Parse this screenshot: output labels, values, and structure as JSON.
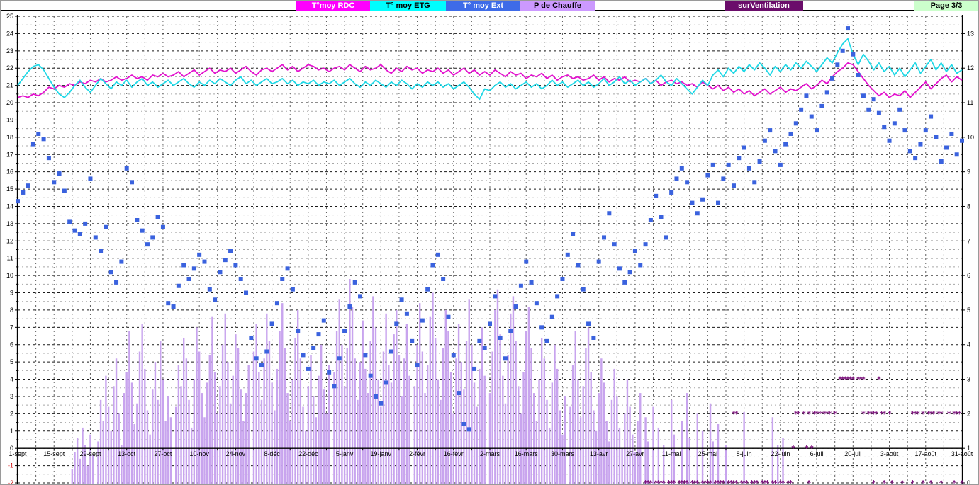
{
  "page": {
    "label": "Page  3/3",
    "bg": "#CCFFCC",
    "fg": "#000000"
  },
  "legend": [
    {
      "label": "T°moy RDC",
      "bg": "#FF00FF",
      "fg": "#FFFFFF"
    },
    {
      "label": "T° moy ETG",
      "bg": "#00FFFF",
      "fg": "#000000"
    },
    {
      "label": "T° moy Ext",
      "bg": "#3E6BE8",
      "fg": "#FFFFFF"
    },
    {
      "label": "P  de Chauffe",
      "bg": "#CC99FF",
      "fg": "#000000"
    },
    {
      "label": "surVentilation",
      "bg": "#6B0D6B",
      "fg": "#FFFFFF"
    }
  ],
  "chart_data": {
    "type": "composite",
    "x_axis": {
      "days": 364,
      "label_interval_days": 14,
      "grid_interval_days": 7,
      "tick_labels": [
        "1-sept",
        "15-sept",
        "29-sept",
        "13-oct",
        "27-oct",
        "10-nov",
        "24-nov",
        "8-déc",
        "22-déc",
        "5-janv",
        "19-janv",
        "2-févr",
        "16-févr",
        "2-mars",
        "16-mars",
        "30-mars",
        "13-avr",
        "27-avr",
        "11-mai",
        "25-mai",
        "8-juin",
        "22-juin",
        "6-juil",
        "20-juil",
        "3-août",
        "17-août",
        "31-août"
      ]
    },
    "axes": {
      "left": {
        "min": -2,
        "max": 25,
        "major": 1,
        "label_color": "#000000",
        "negative_label_color": "#CC0000"
      },
      "right": {
        "min": 0,
        "max": 13.5,
        "major": 1,
        "label_color": "#000000"
      }
    },
    "grid": {
      "major_color": "#1a1a1a",
      "minor_color": "#A8A8A8",
      "vertical_color": "#606060"
    },
    "series": [
      {
        "name": "T°moy RDC",
        "type": "line",
        "axis": "left",
        "color": "#E312CE",
        "step_days": 2,
        "values": [
          20.3,
          20.4,
          20.3,
          20.5,
          20.4,
          20.6,
          20.9,
          20.8,
          21.0,
          20.9,
          21.1,
          21.0,
          21.2,
          21.1,
          21.3,
          21.2,
          21.4,
          21.2,
          21.3,
          21.5,
          21.3,
          21.4,
          21.6,
          21.4,
          21.5,
          21.3,
          21.6,
          21.5,
          21.7,
          21.5,
          21.6,
          21.8,
          21.5,
          21.7,
          21.9,
          21.6,
          21.8,
          22.0,
          21.7,
          21.9,
          21.8,
          22.0,
          21.7,
          21.9,
          22.1,
          21.8,
          21.6,
          21.9,
          22.0,
          21.8,
          22.0,
          22.2,
          21.9,
          22.1,
          21.8,
          22.0,
          22.2,
          22.1,
          21.9,
          22.0,
          21.8,
          22.0,
          22.1,
          21.9,
          22.2,
          22.0,
          21.8,
          22.1,
          21.9,
          22.0,
          22.2,
          21.9,
          21.7,
          22.0,
          21.8,
          22.1,
          21.9,
          22.0,
          21.7,
          21.9,
          21.8,
          22.0,
          21.7,
          21.9,
          21.6,
          21.8,
          22.0,
          21.7,
          21.9,
          21.6,
          21.8,
          21.6,
          21.9,
          21.7,
          21.5,
          21.8,
          21.6,
          21.7,
          21.4,
          21.6,
          21.5,
          21.7,
          21.4,
          21.6,
          21.3,
          21.5,
          21.6,
          21.4,
          21.5,
          21.3,
          21.4,
          21.6,
          21.3,
          21.5,
          21.2,
          21.4,
          21.3,
          21.5,
          21.2,
          21.3,
          21.2,
          21.4,
          21.1,
          21.3,
          21.0,
          21.2,
          21.3,
          21.1,
          21.2,
          21.0,
          21.1,
          20.9,
          21.2,
          21.0,
          20.8,
          21.0,
          20.7,
          20.9,
          20.6,
          20.8,
          20.5,
          20.7,
          20.4,
          20.6,
          20.8,
          20.5,
          20.7,
          20.9,
          20.6,
          20.8,
          20.7,
          20.9,
          21.1,
          20.8,
          21.0,
          21.3,
          21.1,
          21.5,
          21.8,
          22.0,
          22.3,
          22.2,
          21.8,
          21.4,
          21.0,
          20.7,
          20.4,
          20.6,
          20.3,
          20.5,
          20.4,
          20.7,
          20.3,
          20.6,
          20.9,
          21.2,
          20.8,
          21.1,
          21.4,
          21.6,
          21.2,
          21.5,
          21.3
        ]
      },
      {
        "name": "T° moy ETG",
        "type": "line",
        "axis": "left",
        "color": "#1FD8E6",
        "step_days": 2,
        "values": [
          21.0,
          21.4,
          21.8,
          22.1,
          22.2,
          21.9,
          21.4,
          20.9,
          20.5,
          20.3,
          20.6,
          21.0,
          21.3,
          20.9,
          20.6,
          21.0,
          21.4,
          21.1,
          20.8,
          21.2,
          21.0,
          21.3,
          20.9,
          21.2,
          21.4,
          21.0,
          21.2,
          20.9,
          21.1,
          21.3,
          21.0,
          21.2,
          21.4,
          21.1,
          20.9,
          21.2,
          21.0,
          21.3,
          21.1,
          21.4,
          21.2,
          21.0,
          21.3,
          21.5,
          21.1,
          21.3,
          21.0,
          21.2,
          21.4,
          21.1,
          21.2,
          21.4,
          21.1,
          21.3,
          21.0,
          21.2,
          21.1,
          21.3,
          21.0,
          21.2,
          21.1,
          21.3,
          21.0,
          21.2,
          21.4,
          21.1,
          20.9,
          21.2,
          21.0,
          21.3,
          21.1,
          20.9,
          21.2,
          21.0,
          21.3,
          21.1,
          20.8,
          21.1,
          20.9,
          21.2,
          21.0,
          21.2,
          20.9,
          21.1,
          20.8,
          21.0,
          21.2,
          20.9,
          20.5,
          20.2,
          20.8,
          20.7,
          21.0,
          21.2,
          20.9,
          21.1,
          20.8,
          21.0,
          21.2,
          20.9,
          21.1,
          20.8,
          21.0,
          21.3,
          21.0,
          21.2,
          20.9,
          21.1,
          21.3,
          21.0,
          21.2,
          20.9,
          21.1,
          21.4,
          21.0,
          21.2,
          21.5,
          21.1,
          21.3,
          21.0,
          21.2,
          21.4,
          21.1,
          21.3,
          21.6,
          21.2,
          21.0,
          21.4,
          21.1,
          20.8,
          20.5,
          20.9,
          21.3,
          21.0,
          21.6,
          21.9,
          21.5,
          22.0,
          21.7,
          22.1,
          21.8,
          22.2,
          21.9,
          22.3,
          22.0,
          21.6,
          22.1,
          21.8,
          22.2,
          21.9,
          22.3,
          22.0,
          22.4,
          22.1,
          21.8,
          22.2,
          22.6,
          22.3,
          22.9,
          23.4,
          23.7,
          22.8,
          22.2,
          22.8,
          22.4,
          21.9,
          22.3,
          21.8,
          22.1,
          21.6,
          22.0,
          21.5,
          21.9,
          22.3,
          21.7,
          22.1,
          22.5,
          21.9,
          22.3,
          21.8,
          22.2,
          21.7,
          21.9
        ]
      },
      {
        "name": "T° moy Ext",
        "type": "scatter",
        "axis": "left",
        "color": "#3A62DE",
        "step_days": 2,
        "values": [
          14.3,
          14.8,
          15.2,
          17.6,
          18.2,
          17.9,
          16.8,
          15.4,
          15.9,
          14.9,
          13.1,
          12.6,
          12.4,
          13.0,
          15.6,
          12.2,
          11.4,
          12.8,
          10.2,
          9.6,
          10.8,
          16.2,
          15.4,
          13.2,
          12.6,
          11.8,
          12.2,
          13.4,
          12.8,
          8.4,
          8.2,
          9.4,
          10.6,
          9.8,
          10.4,
          11.2,
          10.8,
          9.2,
          8.6,
          10.2,
          10.9,
          11.4,
          10.6,
          9.8,
          9.0,
          6.4,
          5.2,
          4.8,
          5.6,
          7.2,
          8.4,
          9.8,
          10.4,
          9.2,
          6.8,
          5.4,
          4.6,
          5.8,
          6.6,
          7.4,
          4.4,
          3.6,
          5.2,
          6.8,
          8.2,
          9.6,
          8.8,
          5.4,
          4.2,
          3.0,
          2.6,
          3.8,
          5.6,
          7.2,
          8.6,
          7.8,
          6.2,
          4.8,
          7.4,
          9.2,
          10.6,
          11.2,
          9.8,
          7.6,
          5.4,
          3.2,
          1.4,
          1.1,
          4.6,
          6.2,
          5.8,
          7.2,
          8.8,
          6.4,
          5.2,
          6.8,
          8.2,
          9.4,
          10.8,
          9.6,
          8.4,
          7.0,
          6.2,
          7.6,
          8.8,
          9.8,
          11.2,
          12.4,
          10.6,
          9.2,
          7.2,
          6.4,
          10.8,
          12.2,
          13.6,
          11.8,
          10.4,
          9.6,
          10.2,
          11.4,
          10.6,
          11.8,
          13.2,
          14.6,
          13.4,
          12.2,
          14.8,
          15.6,
          16.2,
          15.4,
          14.2,
          13.6,
          14.4,
          15.8,
          16.4,
          14.2,
          15.6,
          16.4,
          15.2,
          16.8,
          17.4,
          16.2,
          15.4,
          16.6,
          17.8,
          18.4,
          17.2,
          16.4,
          17.6,
          18.2,
          18.8,
          19.6,
          20.4,
          19.2,
          18.4,
          19.8,
          20.6,
          21.4,
          22.2,
          23.0,
          24.3,
          22.8,
          21.6,
          20.4,
          19.6,
          20.2,
          19.4,
          18.6,
          17.8,
          18.8,
          19.6,
          18.4,
          17.2,
          16.8,
          17.6,
          18.4,
          19.2,
          18.0,
          16.6,
          17.4,
          18.2,
          17.0,
          17.8
        ]
      },
      {
        "name": "P  de Chauffe",
        "type": "bar",
        "axis": "right",
        "color": "#C8A4EE",
        "runs": [
          {
            "start": 21,
            "heights": [
              0.4,
              0.9,
              1.3,
              0.7,
              1.6,
              1.1,
              0.5,
              1.4,
              0.8
            ]
          },
          {
            "start": 31,
            "heights": [
              1.2,
              2.4,
              1.8,
              3.1,
              2.2,
              1.5,
              2.8,
              3.6,
              2.0,
              1.1,
              2.6,
              3.2,
              4.4,
              2.9,
              1.7,
              2.3,
              3.8,
              4.6,
              3.3,
              2.1,
              1.4,
              2.7,
              3.5,
              2.4,
              4.1,
              3.0,
              1.8,
              2.5,
              1.9
            ]
          },
          {
            "start": 61,
            "heights": [
              2.2,
              3.4,
              2.8,
              4.2,
              3.6,
              2.4,
              1.6,
              3.0,
              4.5,
              3.8,
              2.6,
              1.9,
              2.9,
              3.7,
              4.8,
              3.2,
              2.0,
              2.8,
              4.0,
              4.9,
              3.5,
              2.3,
              3.1,
              4.3,
              3.9,
              2.7,
              1.8,
              2.6,
              3.4
            ]
          },
          {
            "start": 91,
            "heights": [
              3.8,
              4.6,
              3.2,
              2.4,
              3.6,
              4.9,
              4.1,
              2.9,
              2.1,
              3.3,
              4.4,
              5.2,
              3.9,
              2.6,
              1.8,
              3.0,
              4.2,
              5.0,
              3.6,
              2.2,
              1.5,
              2.8,
              3.7,
              2.5,
              1.9,
              3.1,
              4.0,
              2.7,
              2.0,
              3.4
            ]
          },
          {
            "start": 122,
            "heights": [
              3.2,
              4.4,
              5.3,
              4.0,
              2.8,
              3.9,
              5.9,
              5.1,
              3.6,
              2.4,
              3.5,
              4.7,
              3.3,
              2.6,
              4.1,
              5.4,
              4.5,
              3.0,
              2.2,
              3.8,
              4.9,
              3.4,
              2.9,
              4.3,
              5.0,
              3.7,
              2.5,
              3.6,
              4.6,
              3.1
            ]
          },
          {
            "start": 153,
            "heights": [
              2.8,
              4.0,
              5.2,
              3.8,
              2.6,
              3.4,
              4.8,
              5.5,
              4.2,
              3.0,
              2.4,
              3.9,
              5.0,
              4.4,
              3.2,
              2.0,
              3.6,
              4.6,
              3.5,
              2.7,
              4.1,
              5.3,
              4.0,
              2.9,
              2.2,
              3.3,
              4.5,
              3.1
            ]
          },
          {
            "start": 182,
            "heights": [
              2.6,
              3.8,
              5.0,
              5.6,
              4.3,
              3.1,
              2.3,
              3.7,
              4.9,
              5.4,
              4.1,
              2.8,
              2.0,
              3.2,
              4.4,
              5.1,
              3.9,
              2.6,
              1.8,
              3.0,
              4.2,
              3.6,
              2.4,
              1.6,
              2.9,
              4.0,
              3.3,
              2.1,
              1.4,
              2.5
            ]
          },
          {
            "start": 213,
            "heights": [
              2.2,
              3.4,
              4.4,
              3.0,
              1.9,
              2.8,
              3.9,
              4.5,
              3.2,
              2.1,
              1.5,
              2.6,
              3.6,
              2.9,
              1.8,
              1.2,
              2.4,
              3.3,
              2.5,
              1.6,
              1.0,
              2.0,
              3.0,
              2.2,
              1.4,
              0.9,
              1.8,
              2.6
            ]
          }
        ],
        "points": [
          [
            242,
            1.9
          ],
          [
            243,
            1.2
          ],
          [
            245,
            2.2
          ],
          [
            247,
            1.6
          ],
          [
            249,
            1.1
          ],
          [
            252,
            2.4
          ],
          [
            253,
            1.4
          ],
          [
            256,
            1.8
          ],
          [
            258,
            2.6
          ],
          [
            259,
            1.3
          ],
          [
            262,
            2.0
          ],
          [
            264,
            1.5
          ],
          [
            267,
            2.3
          ],
          [
            268,
            1.2
          ],
          [
            270,
            1.7
          ],
          [
            273,
            1.1
          ],
          [
            280,
            2.05
          ],
          [
            291,
            1.9
          ],
          [
            293,
            1.1
          ],
          [
            295,
            1.3
          ]
        ]
      },
      {
        "name": "surVentilation",
        "type": "marker",
        "axis": "right",
        "color": "#7B107B",
        "marker": "*",
        "levels": {
          "0": [
            242,
            243,
            244,
            246,
            247,
            248,
            249,
            251,
            252,
            253,
            255,
            256,
            257,
            258,
            260,
            261,
            262,
            264,
            265,
            266,
            267,
            269,
            270,
            271,
            272,
            274,
            275,
            276,
            277,
            279,
            280,
            281,
            283,
            284,
            285,
            287,
            288,
            289,
            291,
            292,
            294,
            295,
            297,
            298,
            305,
            330,
            334,
            337,
            341,
            345,
            349,
            352,
            356,
            361,
            364
          ],
          "1": [
            299,
            304,
            306
          ],
          "2": [
            276,
            277,
            300,
            301,
            303,
            305,
            307,
            308,
            309,
            310,
            311,
            312,
            313,
            315,
            326,
            328,
            329,
            330,
            331,
            333,
            334,
            336,
            345,
            346,
            347,
            349,
            351,
            352,
            353,
            355,
            356,
            359,
            361,
            362,
            363
          ],
          "3": [
            317,
            318,
            319,
            320,
            321,
            322,
            324,
            325,
            326,
            332
          ]
        }
      }
    ]
  }
}
